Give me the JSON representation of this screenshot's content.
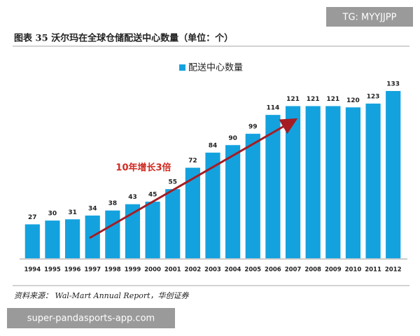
{
  "chart_data": {
    "type": "bar",
    "title": "图表 35  沃尔玛在全球仓储配送中心数量（单位：个）",
    "categories": [
      "1994",
      "1995",
      "1996",
      "1997",
      "1998",
      "1999",
      "2000",
      "2001",
      "2002",
      "2003",
      "2004",
      "2005",
      "2006",
      "2007",
      "2008",
      "2009",
      "2010",
      "2011",
      "2012"
    ],
    "series": [
      {
        "name": "配送中心数量",
        "color": "#14a2df",
        "values": [
          27,
          30,
          31,
          34,
          38,
          43,
          45,
          55,
          72,
          84,
          90,
          99,
          114,
          121,
          121,
          121,
          120,
          123,
          133
        ]
      }
    ],
    "annotation": "10年增长3倍",
    "source": "资料来源： Wal-Mart Annual Report，华创证券"
  },
  "watermarks": [
    "TG: MYYJJPP",
    "super-pandasports-app.com"
  ]
}
